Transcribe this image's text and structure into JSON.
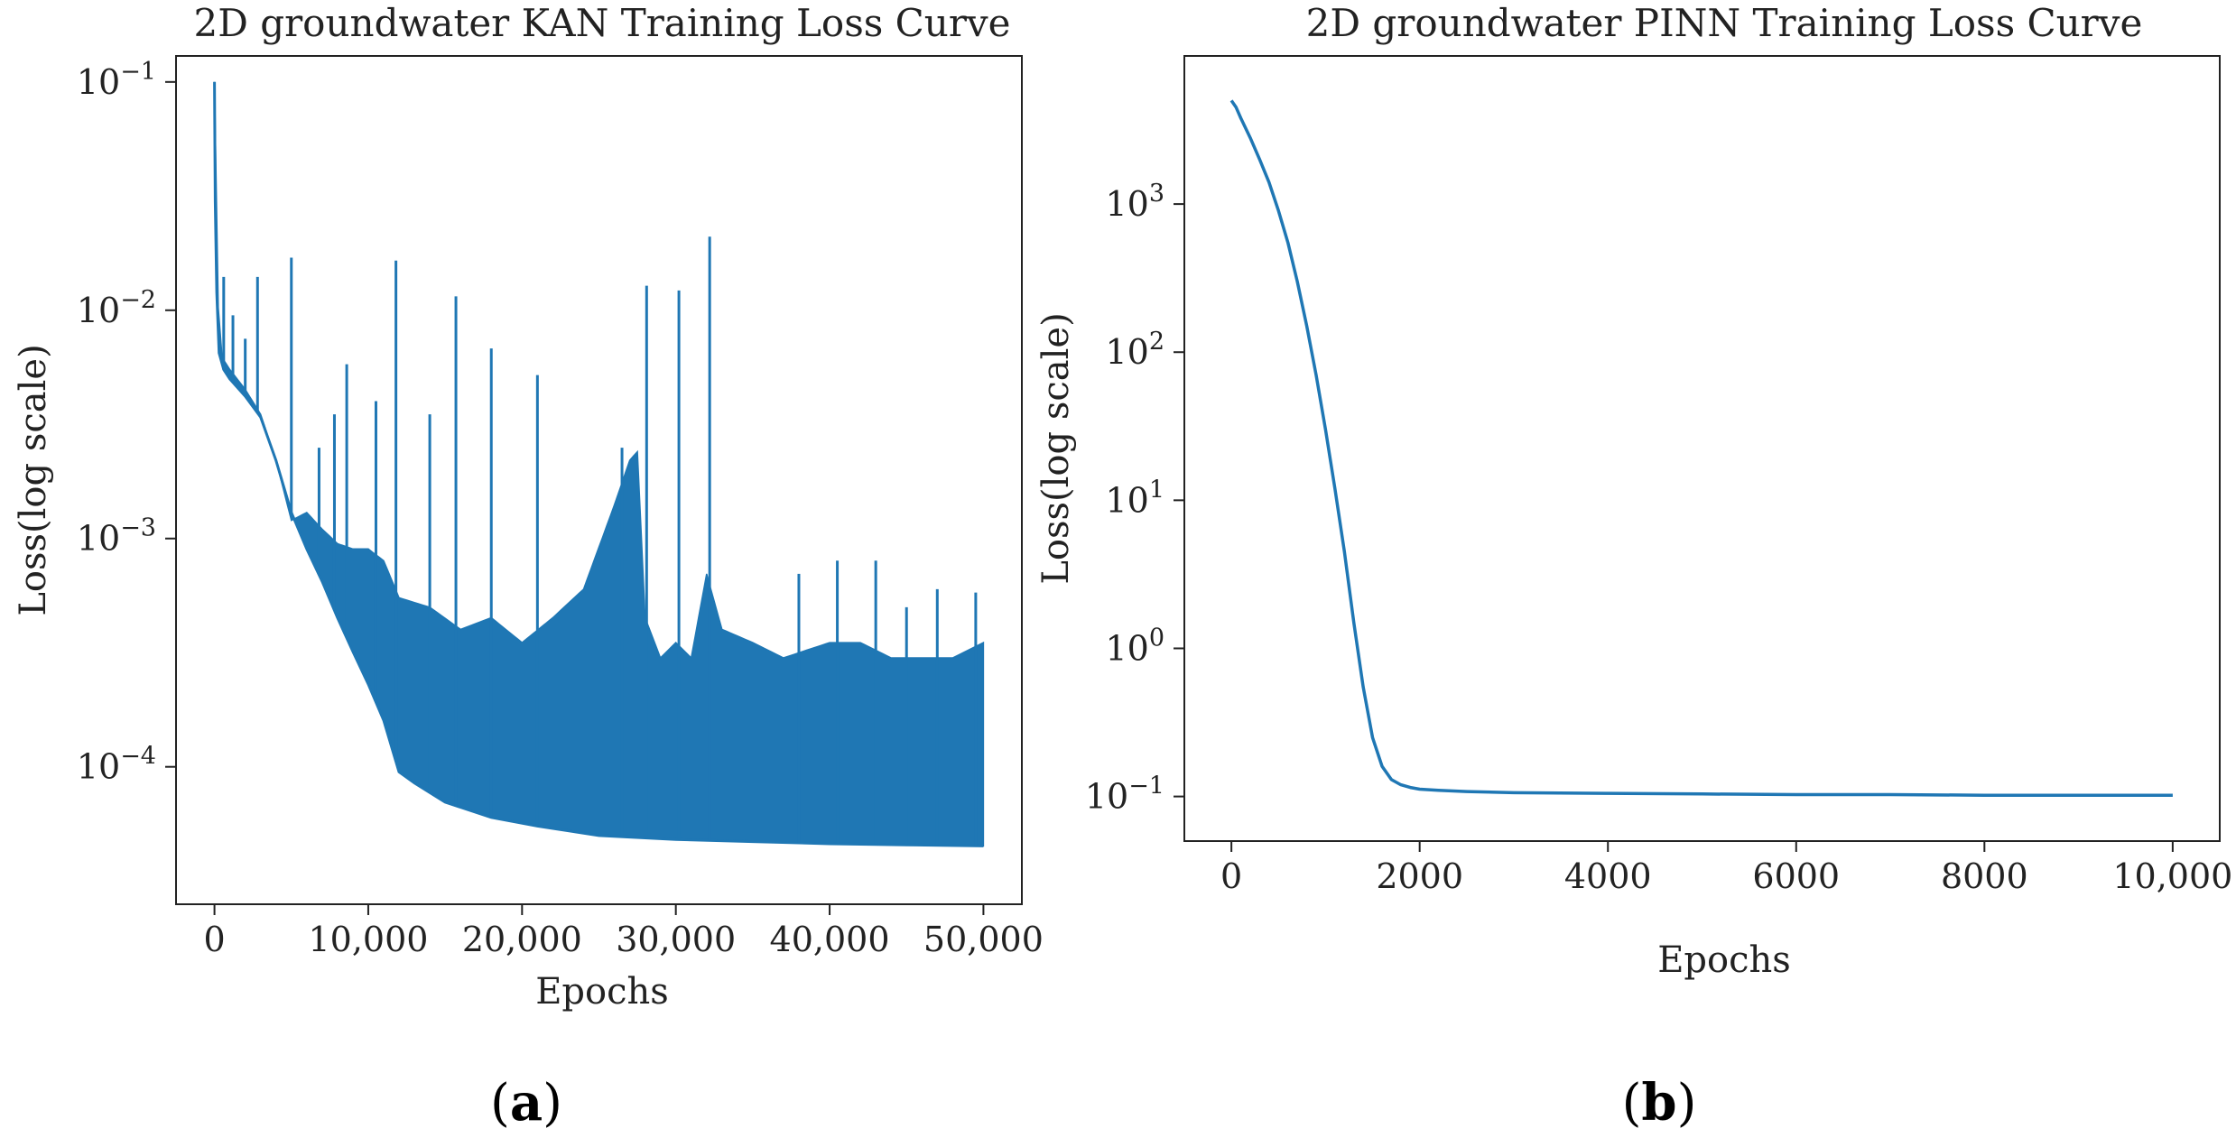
{
  "chart_data": [
    {
      "type": "line",
      "panel_label": "a",
      "title": "2D groundwater  KAN Training Loss Curve",
      "xlabel": "Epochs",
      "ylabel": "Loss(log scale)",
      "yscale": "log",
      "xlim": [
        -2500,
        52500
      ],
      "ylim": [
        2.5e-05,
        0.13
      ],
      "xticks": [
        0,
        10000,
        20000,
        30000,
        40000,
        50000
      ],
      "xtick_labels": [
        "0",
        "10,000",
        "20,000",
        "30,000",
        "40,000",
        "50,000"
      ],
      "yticks": [
        0.0001,
        0.001,
        0.01,
        0.1
      ],
      "ytick_labels": [
        {
          "base": "10",
          "exp": "−4"
        },
        {
          "base": "10",
          "exp": "−3"
        },
        {
          "base": "10",
          "exp": "−2"
        },
        {
          "base": "10",
          "exp": "−1"
        }
      ],
      "grid": false,
      "color": "#1f77b4",
      "series": [
        {
          "baseline": [
            [
              0,
              0.1
            ],
            [
              50,
              0.03
            ],
            [
              150,
              0.012
            ],
            [
              300,
              0.0065
            ],
            [
              600,
              0.0055
            ],
            [
              1000,
              0.005
            ],
            [
              2000,
              0.0042
            ],
            [
              3000,
              0.0034
            ],
            [
              4000,
              0.0022
            ],
            [
              5000,
              0.0013
            ],
            [
              6000,
              0.0009
            ],
            [
              7000,
              0.00065
            ],
            [
              8000,
              0.00045
            ],
            [
              9000,
              0.00032
            ],
            [
              10000,
              0.00023
            ],
            [
              11000,
              0.00016
            ],
            [
              12000,
              9.5e-05
            ],
            [
              13000,
              8.5e-05
            ],
            [
              15000,
              7e-05
            ],
            [
              18000,
              6e-05
            ],
            [
              21000,
              5.5e-05
            ],
            [
              25000,
              5e-05
            ],
            [
              30000,
              4.8e-05
            ],
            [
              35000,
              4.7e-05
            ],
            [
              40000,
              4.6e-05
            ],
            [
              45000,
              4.55e-05
            ],
            [
              50000,
              4.5e-05
            ]
          ],
          "envelope": [
            [
              0,
              0.1
            ],
            [
              300,
              0.0065
            ],
            [
              1000,
              0.0055
            ],
            [
              2000,
              0.0045
            ],
            [
              3000,
              0.0035
            ],
            [
              4000,
              0.0022
            ],
            [
              5000,
              0.0012
            ],
            [
              6000,
              0.0013
            ],
            [
              7000,
              0.0011
            ],
            [
              8000,
              0.00095
            ],
            [
              9000,
              0.0009
            ],
            [
              10000,
              0.0009
            ],
            [
              11000,
              0.0008
            ],
            [
              12000,
              0.00055
            ],
            [
              14000,
              0.0005
            ],
            [
              16000,
              0.0004
            ],
            [
              18000,
              0.00045
            ],
            [
              20000,
              0.00035
            ],
            [
              22000,
              0.00045
            ],
            [
              24000,
              0.0006
            ],
            [
              26000,
              0.0014
            ],
            [
              27000,
              0.0022
            ],
            [
              27500,
              0.0024
            ],
            [
              28000,
              0.00045
            ],
            [
              29000,
              0.0003
            ],
            [
              30000,
              0.00035
            ],
            [
              31000,
              0.0003
            ],
            [
              32000,
              0.0007
            ],
            [
              33000,
              0.0004
            ],
            [
              35000,
              0.00035
            ],
            [
              37000,
              0.0003
            ],
            [
              40000,
              0.00035
            ],
            [
              42000,
              0.00035
            ],
            [
              44000,
              0.0003
            ],
            [
              46000,
              0.0003
            ],
            [
              48000,
              0.0003
            ],
            [
              50000,
              0.00035
            ]
          ],
          "spikes": [
            [
              600,
              0.014
            ],
            [
              1200,
              0.0095
            ],
            [
              2000,
              0.0075
            ],
            [
              2800,
              0.014
            ],
            [
              5000,
              0.017
            ],
            [
              6800,
              0.0025
            ],
            [
              7800,
              0.0035
            ],
            [
              8600,
              0.0058
            ],
            [
              10500,
              0.004
            ],
            [
              11800,
              0.0165
            ],
            [
              14000,
              0.0035
            ],
            [
              15700,
              0.0115
            ],
            [
              18000,
              0.0068
            ],
            [
              21000,
              0.0052
            ],
            [
              26500,
              0.0025
            ],
            [
              28100,
              0.0128
            ],
            [
              30200,
              0.0122
            ],
            [
              32200,
              0.021
            ],
            [
              38000,
              0.0007
            ],
            [
              40500,
              0.0008
            ],
            [
              43000,
              0.0008
            ],
            [
              45000,
              0.0005
            ],
            [
              47000,
              0.0006
            ],
            [
              49500,
              0.00058
            ]
          ]
        }
      ]
    },
    {
      "type": "line",
      "panel_label": "b",
      "title": "2D groundwater  PINN Training Loss Curve",
      "xlabel": "Epochs",
      "ylabel": "Loss(log scale)",
      "yscale": "log",
      "xlim": [
        -500,
        10500
      ],
      "ylim": [
        0.05,
        10000
      ],
      "xticks": [
        0,
        2000,
        4000,
        6000,
        8000,
        10000
      ],
      "xtick_labels": [
        "0",
        "2000",
        "4000",
        "6000",
        "8000",
        "10,000"
      ],
      "yticks": [
        0.1,
        1,
        10,
        100,
        1000
      ],
      "ytick_labels": [
        {
          "base": "10",
          "exp": "−1"
        },
        {
          "base": "10",
          "exp": "0"
        },
        {
          "base": "10",
          "exp": "1"
        },
        {
          "base": "10",
          "exp": "2"
        },
        {
          "base": "10",
          "exp": "3"
        }
      ],
      "grid": false,
      "color": "#1f77b4",
      "series": [
        {
          "x": [
            0,
            50,
            100,
            200,
            300,
            400,
            500,
            600,
            700,
            800,
            900,
            1000,
            1100,
            1200,
            1300,
            1400,
            1500,
            1600,
            1700,
            1800,
            1900,
            2000,
            2200,
            2500,
            3000,
            4000,
            5000,
            6000,
            7000,
            8000,
            9000,
            10000
          ],
          "y": [
            5000,
            4500,
            3800,
            2800,
            2000,
            1400,
            900,
            550,
            300,
            150,
            70,
            30,
            12,
            4.5,
            1.5,
            0.55,
            0.25,
            0.16,
            0.13,
            0.12,
            0.115,
            0.112,
            0.11,
            0.108,
            0.106,
            0.105,
            0.104,
            0.103,
            0.103,
            0.102,
            0.102,
            0.102
          ]
        }
      ]
    }
  ]
}
